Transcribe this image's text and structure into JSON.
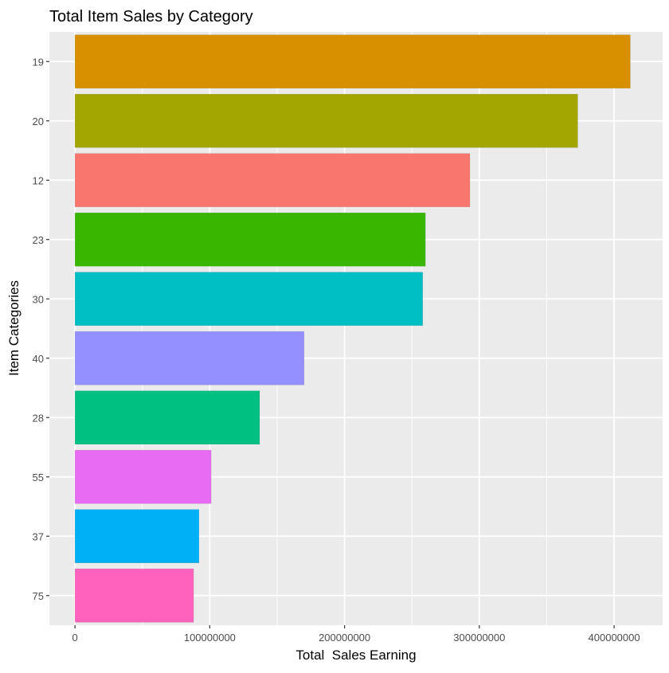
{
  "chart_data": {
    "type": "bar",
    "orientation": "horizontal",
    "title": "Total Item Sales by Category",
    "xlabel": "Total  Sales Earning",
    "ylabel": "Item Categories",
    "categories": [
      "19",
      "20",
      "12",
      "23",
      "30",
      "40",
      "28",
      "55",
      "37",
      "75"
    ],
    "values": [
      412000000,
      373000000,
      293000000,
      260000000,
      258000000,
      170000000,
      137000000,
      101000000,
      92000000,
      88000000
    ],
    "colors": [
      "#D89000",
      "#A3A500",
      "#F8766D",
      "#39B600",
      "#00BFC4",
      "#9590FF",
      "#00C081",
      "#E76BF3",
      "#00B0F6",
      "#FF62BC"
    ],
    "xlim": [
      -19000000,
      436000000
    ],
    "x_ticks": [
      0,
      100000000,
      200000000,
      300000000,
      400000000
    ],
    "x_tick_labels": [
      "0",
      "100000000",
      "200000000",
      "300000000",
      "400000000"
    ],
    "grid": true,
    "panel_background": "#EBEBEB",
    "grid_color": "#FFFFFF"
  }
}
